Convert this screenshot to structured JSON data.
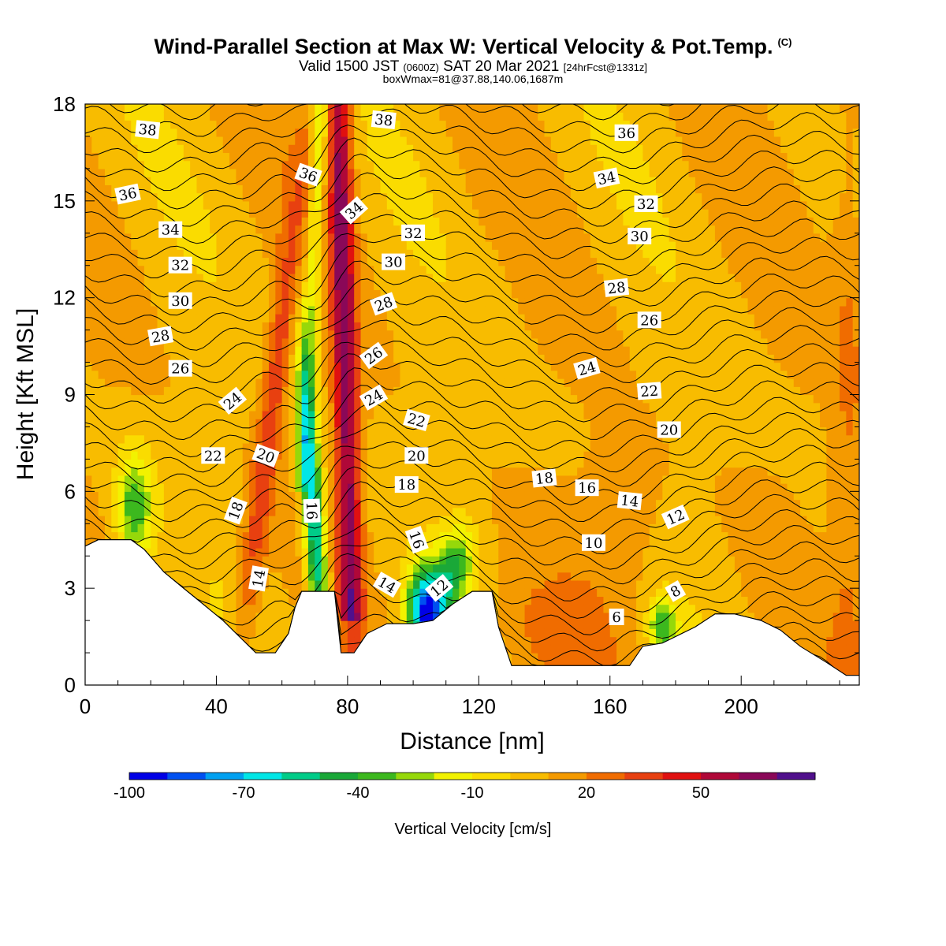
{
  "header": {
    "title": "Wind-Parallel Section at Max W: Vertical Velocity & Pot.Temp.",
    "title_mark": "(C)",
    "valid_prefix": "Valid 1500 JST",
    "valid_utc": "(0600Z)",
    "valid_date": "SAT 20 Mar 2021",
    "forecast": "[24hrFcst@1331z]",
    "box_note": "boxWmax=81@37.88,140.06,1687m"
  },
  "chart_data": {
    "type": "heatmap",
    "description_series": "Vertical velocity (shaded) with potential temperature contours",
    "xlabel": "Distance [nm]",
    "ylabel": "Height [Kft MSL]",
    "xlim": [
      0,
      236
    ],
    "ylim": [
      0,
      18
    ],
    "xticks": [
      0,
      40,
      80,
      120,
      160,
      200
    ],
    "yticks": [
      0,
      3,
      6,
      9,
      12,
      15,
      18
    ],
    "colorbar": {
      "label": "Vertical Velocity [cm/s]",
      "tick_labels": [
        "-100",
        "-70",
        "-40",
        "-10",
        "20",
        "50"
      ],
      "tick_values": [
        -100,
        -70,
        -40,
        -10,
        20,
        50
      ],
      "levels": [
        -100,
        -90,
        -80,
        -70,
        -60,
        -50,
        -40,
        -30,
        -20,
        -10,
        0,
        10,
        20,
        30,
        40,
        50,
        60,
        70
      ],
      "colors": [
        "#0000e6",
        "#0050f0",
        "#00a0f0",
        "#00e6e6",
        "#00cc88",
        "#1aa838",
        "#3cb81e",
        "#96d80a",
        "#f2f200",
        "#fadc00",
        "#f8bc00",
        "#f49a00",
        "#f06c00",
        "#e84010",
        "#e01010",
        "#b00838",
        "#8a0858",
        "#50108c"
      ]
    },
    "terrain": [
      [
        0,
        4.3
      ],
      [
        4,
        4.5
      ],
      [
        14,
        4.5
      ],
      [
        18,
        4.2
      ],
      [
        24,
        3.5
      ],
      [
        30,
        3.0
      ],
      [
        36,
        2.5
      ],
      [
        42,
        2.0
      ],
      [
        46,
        1.6
      ],
      [
        50,
        1.2
      ],
      [
        52,
        1.0
      ],
      [
        58,
        1.0
      ],
      [
        62,
        1.6
      ],
      [
        64,
        2.4
      ],
      [
        66,
        2.9
      ],
      [
        72,
        2.9
      ],
      [
        76,
        2.9
      ],
      [
        78,
        1.0
      ],
      [
        82,
        1.0
      ],
      [
        86,
        1.6
      ],
      [
        92,
        1.9
      ],
      [
        100,
        1.9
      ],
      [
        106,
        2.0
      ],
      [
        112,
        2.5
      ],
      [
        118,
        2.9
      ],
      [
        124,
        2.9
      ],
      [
        126,
        1.8
      ],
      [
        130,
        0.6
      ],
      [
        140,
        0.6
      ],
      [
        150,
        0.6
      ],
      [
        166,
        0.6
      ],
      [
        170,
        1.2
      ],
      [
        176,
        1.3
      ],
      [
        180,
        1.5
      ],
      [
        186,
        1.8
      ],
      [
        192,
        2.2
      ],
      [
        198,
        2.2
      ],
      [
        206,
        2.0
      ],
      [
        212,
        1.7
      ],
      [
        218,
        1.2
      ],
      [
        226,
        0.7
      ],
      [
        232,
        0.3
      ],
      [
        236,
        0.3
      ]
    ],
    "updraft_bands": [
      {
        "x_low": 78,
        "x_high": 81,
        "w": 60
      },
      {
        "x_low": 52,
        "x_high": 59,
        "w": 45
      },
      {
        "x_low": 44,
        "x_high": 50,
        "w": 40
      }
    ],
    "downdraft_bands": [
      {
        "x_low": 72,
        "x_high": 68,
        "w": -80
      },
      {
        "x_low": 104,
        "x_high": 104,
        "w": -90
      },
      {
        "x_low": 14,
        "x_high": 14,
        "w": -40
      },
      {
        "x_low": 175,
        "x_high": 175,
        "w": -40
      }
    ],
    "contour_labels": [
      {
        "text": "38",
        "x": 19,
        "y": 17.2,
        "angle": 6
      },
      {
        "text": "38",
        "x": 91,
        "y": 17.5,
        "angle": 6
      },
      {
        "text": "36",
        "x": 13,
        "y": 15.2,
        "angle": -12
      },
      {
        "text": "36",
        "x": 68,
        "y": 15.8,
        "angle": 20
      },
      {
        "text": "36",
        "x": 165,
        "y": 17.1,
        "angle": 0
      },
      {
        "text": "34",
        "x": 26,
        "y": 14.1,
        "angle": 0
      },
      {
        "text": "34",
        "x": 82,
        "y": 14.7,
        "angle": -42
      },
      {
        "text": "34",
        "x": 159,
        "y": 15.7,
        "angle": -12
      },
      {
        "text": "32",
        "x": 29,
        "y": 13.0,
        "angle": 0
      },
      {
        "text": "32",
        "x": 100,
        "y": 14.0,
        "angle": 0
      },
      {
        "text": "32",
        "x": 171,
        "y": 14.9,
        "angle": 0
      },
      {
        "text": "30",
        "x": 29,
        "y": 11.9,
        "angle": 0
      },
      {
        "text": "30",
        "x": 94,
        "y": 13.1,
        "angle": 0
      },
      {
        "text": "30",
        "x": 169,
        "y": 13.9,
        "angle": 0
      },
      {
        "text": "28",
        "x": 23,
        "y": 10.8,
        "angle": -10
      },
      {
        "text": "28",
        "x": 91,
        "y": 11.8,
        "angle": -20
      },
      {
        "text": "28",
        "x": 162,
        "y": 12.3,
        "angle": -6
      },
      {
        "text": "26",
        "x": 29,
        "y": 9.8,
        "angle": 0
      },
      {
        "text": "26",
        "x": 88,
        "y": 10.2,
        "angle": -36
      },
      {
        "text": "26",
        "x": 172,
        "y": 11.3,
        "angle": 0
      },
      {
        "text": "24",
        "x": 45,
        "y": 8.8,
        "angle": -40
      },
      {
        "text": "24",
        "x": 88,
        "y": 8.9,
        "angle": -30
      },
      {
        "text": "24",
        "x": 153,
        "y": 9.8,
        "angle": -16
      },
      {
        "text": "22",
        "x": 39,
        "y": 7.1,
        "angle": 0
      },
      {
        "text": "22",
        "x": 101,
        "y": 8.2,
        "angle": 16
      },
      {
        "text": "22",
        "x": 172,
        "y": 9.1,
        "angle": -4
      },
      {
        "text": "20",
        "x": 55,
        "y": 7.1,
        "angle": 20
      },
      {
        "text": "20",
        "x": 101,
        "y": 7.1,
        "angle": 0
      },
      {
        "text": "20",
        "x": 178,
        "y": 7.9,
        "angle": 0
      },
      {
        "text": "18",
        "x": 46,
        "y": 5.4,
        "angle": -70
      },
      {
        "text": "18",
        "x": 98,
        "y": 6.2,
        "angle": 0
      },
      {
        "text": "18",
        "x": 140,
        "y": 6.4,
        "angle": -6
      },
      {
        "text": "16",
        "x": 69,
        "y": 5.4,
        "angle": 88
      },
      {
        "text": "16",
        "x": 101,
        "y": 4.5,
        "angle": 70
      },
      {
        "text": "16",
        "x": 153,
        "y": 6.1,
        "angle": 0
      },
      {
        "text": "14",
        "x": 53,
        "y": 3.3,
        "angle": -80
      },
      {
        "text": "14",
        "x": 92,
        "y": 3.1,
        "angle": 30
      },
      {
        "text": "14",
        "x": 166,
        "y": 5.7,
        "angle": 6
      },
      {
        "text": "12",
        "x": 108,
        "y": 3.0,
        "angle": -40
      },
      {
        "text": "12",
        "x": 180,
        "y": 5.2,
        "angle": -24
      },
      {
        "text": "10",
        "x": 155,
        "y": 4.4,
        "angle": 0
      },
      {
        "text": "8",
        "x": 180,
        "y": 2.9,
        "angle": -30
      },
      {
        "text": "6",
        "x": 162,
        "y": 2.1,
        "angle": 0
      }
    ],
    "grid": false,
    "legend": "colorbar-bottom"
  }
}
